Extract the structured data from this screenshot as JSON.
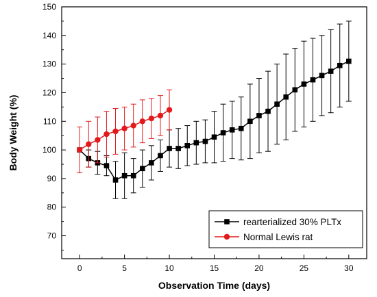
{
  "chart_data": {
    "type": "line",
    "title": "",
    "xlabel": "Observation Time (days)",
    "ylabel": "Body Weight (%)",
    "xlim": [
      -2,
      32
    ],
    "ylim": [
      62,
      150
    ],
    "xticks": [
      0,
      5,
      10,
      15,
      20,
      25,
      30
    ],
    "yticks": [
      70,
      80,
      90,
      100,
      110,
      120,
      130,
      140,
      150
    ],
    "legend_position": "bottom-right",
    "series": [
      {
        "name": "rearterialized 30% PLTx",
        "color": "#000000",
        "marker": "square",
        "x": [
          0,
          1,
          2,
          3,
          4,
          5,
          6,
          7,
          8,
          9,
          10,
          11,
          12,
          13,
          14,
          15,
          16,
          17,
          18,
          19,
          20,
          21,
          22,
          23,
          24,
          25,
          26,
          27,
          28,
          29,
          30
        ],
        "y": [
          100,
          97,
          95.5,
          94.5,
          89.5,
          91,
          91,
          93.5,
          95.5,
          98,
          100.5,
          100.5,
          101.5,
          102.5,
          103,
          104.5,
          106,
          107,
          107.5,
          110,
          112,
          113.5,
          116,
          118.5,
          121,
          123,
          124.5,
          126,
          127.5,
          129.5,
          131
        ],
        "error": [
          0,
          3,
          4,
          3.5,
          6.5,
          8,
          6,
          6.5,
          6,
          5.5,
          6.5,
          7,
          7,
          7.5,
          7.5,
          9,
          10,
          10,
          11,
          13,
          13,
          14,
          14,
          15,
          14.5,
          15,
          14.5,
          14,
          14.5,
          14.5,
          14
        ]
      },
      {
        "name": "Normal Lewis rat",
        "color": "#e31a1c",
        "marker": "circle",
        "x": [
          0,
          1,
          2,
          3,
          4,
          5,
          6,
          7,
          8,
          9,
          10
        ],
        "y": [
          100,
          102,
          103.5,
          105.5,
          106.5,
          107.5,
          108.5,
          110,
          111,
          112,
          114
        ],
        "error": [
          8,
          8,
          8,
          8,
          8,
          7.5,
          7.5,
          7.5,
          7,
          7,
          7
        ]
      }
    ]
  }
}
